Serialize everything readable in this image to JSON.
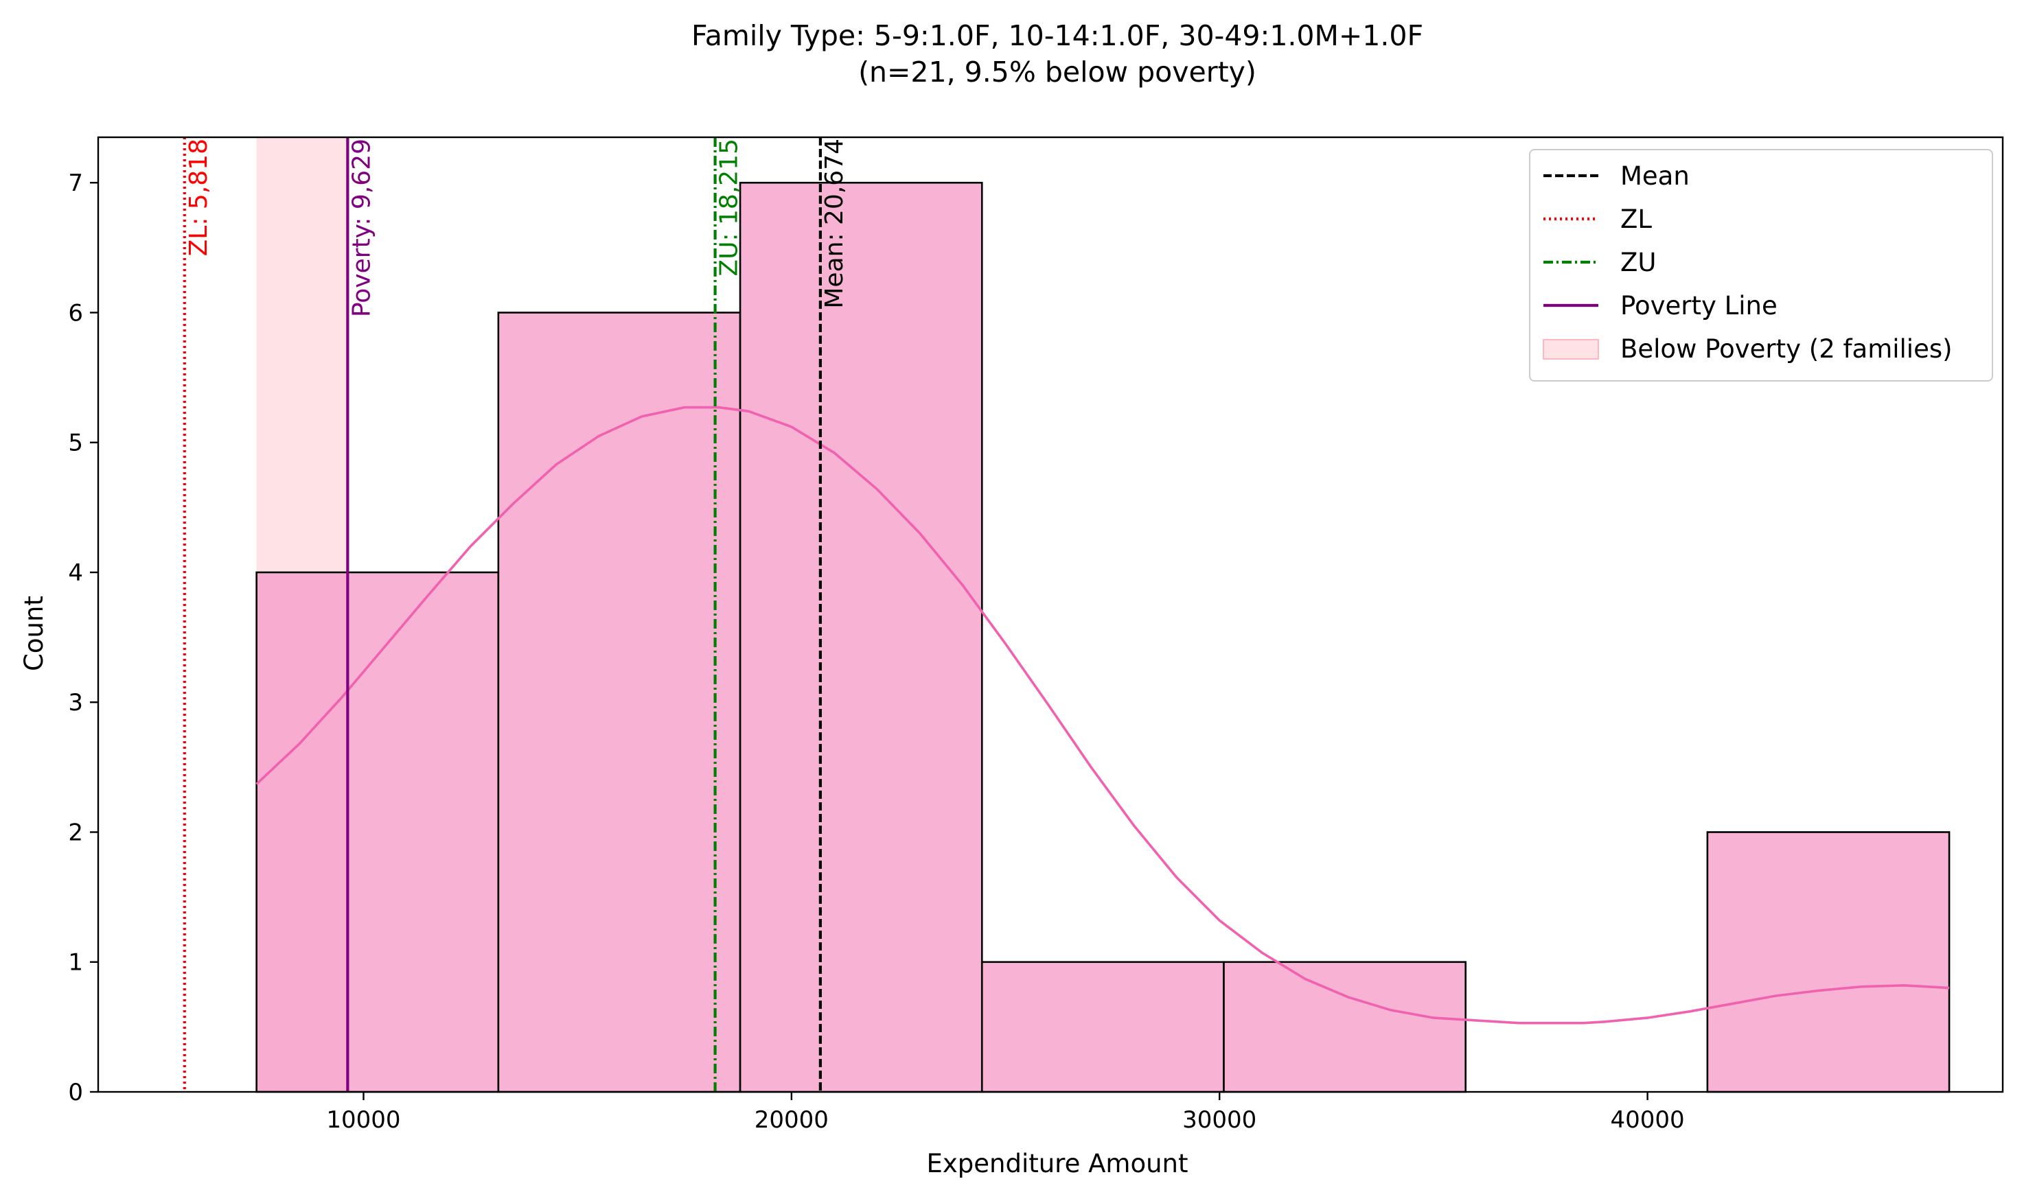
{
  "chart_data": {
    "type": "bar",
    "title_line1": "Family Type: 5-9:1.0F, 10-14:1.0F, 30-49:1.0M+1.0F",
    "title_line2": "(n=21, 9.5% below poverty)",
    "xlabel": "Expenditure Amount",
    "ylabel": "Count",
    "xlim": [
      3800,
      48300
    ],
    "ylim": [
      0,
      7.35
    ],
    "x_ticks": [
      10000,
      20000,
      30000,
      40000
    ],
    "x_tick_labels": [
      "10000",
      "20000",
      "30000",
      "40000"
    ],
    "y_ticks": [
      0,
      1,
      2,
      3,
      4,
      5,
      6,
      7
    ],
    "y_tick_labels": [
      "0",
      "1",
      "2",
      "3",
      "4",
      "5",
      "6",
      "7"
    ],
    "bins": [
      {
        "x0": 7500,
        "x1": 13150,
        "count": 4
      },
      {
        "x0": 13150,
        "x1": 18800,
        "count": 6
      },
      {
        "x0": 18800,
        "x1": 24450,
        "count": 7
      },
      {
        "x0": 24450,
        "x1": 30100,
        "count": 1
      },
      {
        "x0": 30100,
        "x1": 35750,
        "count": 1
      },
      {
        "x0": 35750,
        "x1": 41400,
        "count": 0
      },
      {
        "x0": 41400,
        "x1": 47050,
        "count": 2
      }
    ],
    "kde": {
      "x": [
        7500,
        8500,
        9500,
        10500,
        11500,
        12500,
        13500,
        14500,
        15500,
        16500,
        17500,
        18300,
        19000,
        20000,
        21000,
        22000,
        23000,
        24000,
        25000,
        26000,
        27000,
        28000,
        29000,
        30000,
        31000,
        32000,
        33000,
        34000,
        35000,
        36000,
        37000,
        38000,
        38500,
        39000,
        40000,
        41000,
        42000,
        43000,
        44000,
        45000,
        46000,
        47050
      ],
      "y": [
        2.37,
        2.68,
        3.04,
        3.43,
        3.82,
        4.2,
        4.53,
        4.83,
        5.05,
        5.2,
        5.27,
        5.27,
        5.24,
        5.12,
        4.92,
        4.64,
        4.3,
        3.9,
        3.45,
        2.98,
        2.5,
        2.05,
        1.65,
        1.32,
        1.07,
        0.87,
        0.73,
        0.63,
        0.57,
        0.55,
        0.53,
        0.53,
        0.53,
        0.54,
        0.57,
        0.62,
        0.68,
        0.74,
        0.78,
        0.81,
        0.82,
        0.8
      ]
    },
    "shaded_region": {
      "x0": 7500,
      "x1": 9629,
      "label": "Below Poverty (2 families)",
      "color": "#ffb6c1"
    },
    "vertical_lines": [
      {
        "name": "ZL",
        "x": 5818,
        "color": "#ff0000",
        "style": "dotted",
        "label": "ZL: 5,818"
      },
      {
        "name": "Poverty Line",
        "x": 9629,
        "color": "#800080",
        "style": "solid",
        "label": "Poverty: 9,629"
      },
      {
        "name": "ZU",
        "x": 18215,
        "color": "#008000",
        "style": "dashdot",
        "label": "ZU: 18,215"
      },
      {
        "name": "Mean",
        "x": 20674,
        "color": "#000000",
        "style": "dashed",
        "label": "Mean: 20,674"
      }
    ],
    "legend": {
      "placement": "top-right",
      "entries": [
        {
          "label": "Mean",
          "color": "#000000",
          "style": "dashed"
        },
        {
          "label": "ZL",
          "color": "#ff0000",
          "style": "dotted"
        },
        {
          "label": "ZU",
          "color": "#008000",
          "style": "dashdot"
        },
        {
          "label": "Poverty Line",
          "color": "#800080",
          "style": "solid"
        },
        {
          "label": "Below Poverty (2 families)",
          "color": "#ffb6c1",
          "style": "patch"
        }
      ]
    },
    "bar_color": "#f7a1cb",
    "kde_color": "#f062b0",
    "grid": false
  }
}
